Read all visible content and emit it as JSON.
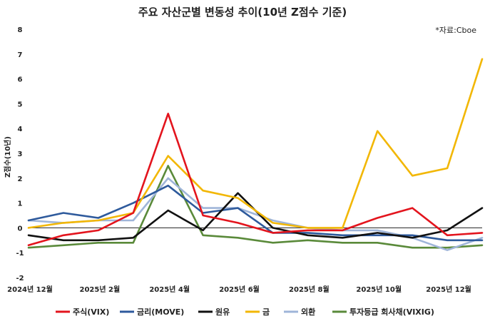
{
  "chart_data": {
    "type": "line",
    "title": "주요 자산군별 변동성 추이(10년 Z점수 기준)",
    "source": "*자료:Cboe",
    "ylabel": "Z점수(10년)",
    "xlabel": "",
    "ylim": [
      -2,
      8
    ],
    "yticks": [
      "-2",
      "-1",
      "0",
      "1",
      "2",
      "3",
      "4",
      "5",
      "6",
      "7",
      "8"
    ],
    "x": [
      "2024-12",
      "2025-01",
      "2025-02",
      "2025-03",
      "2025-04",
      "2025-05",
      "2025-06",
      "2025-07",
      "2025-08",
      "2025-09",
      "2025-10",
      "2025-11",
      "2025-12",
      "2026-01"
    ],
    "xticks": [
      "2024년 12월",
      "2025년 2월",
      "2025년 4월",
      "2025년 6월",
      "2025년 8월",
      "2025년 10월",
      "2025년 12월"
    ],
    "grid": false,
    "legend_position": "bottom",
    "series": [
      {
        "name": "주식(VIX)",
        "color": "#e3141d",
        "values": [
          -0.7,
          -0.3,
          -0.1,
          0.6,
          4.6,
          0.5,
          0.2,
          -0.2,
          -0.1,
          -0.1,
          0.4,
          0.8,
          -0.3,
          -0.2
        ]
      },
      {
        "name": "금리(MOVE)",
        "color": "#2e5a9c",
        "values": [
          0.3,
          0.6,
          0.4,
          1.0,
          1.7,
          0.6,
          0.8,
          -0.2,
          -0.2,
          -0.3,
          -0.3,
          -0.3,
          -0.5,
          -0.5
        ]
      },
      {
        "name": "원유",
        "color": "#111111",
        "values": [
          -0.3,
          -0.5,
          -0.5,
          -0.4,
          0.7,
          -0.1,
          1.4,
          0.0,
          -0.3,
          -0.4,
          -0.2,
          -0.4,
          -0.1,
          0.8
        ]
      },
      {
        "name": "금",
        "color": "#f2b705",
        "values": [
          0.0,
          0.2,
          0.3,
          0.6,
          2.9,
          1.5,
          1.2,
          0.2,
          0.0,
          0.0,
          3.9,
          2.1,
          2.4,
          6.8
        ]
      },
      {
        "name": "외환",
        "color": "#9fb5d9",
        "values": [
          0.3,
          0.2,
          0.3,
          0.3,
          2.0,
          0.8,
          0.8,
          0.3,
          0.0,
          -0.1,
          -0.1,
          -0.4,
          -0.9,
          -0.4
        ]
      },
      {
        "name": "투자등급 회사채(VIXIG)",
        "color": "#5a8a3a",
        "values": [
          -0.8,
          -0.7,
          -0.6,
          -0.6,
          2.5,
          -0.3,
          -0.4,
          -0.6,
          -0.5,
          -0.6,
          -0.6,
          -0.8,
          -0.8,
          -0.7
        ]
      }
    ]
  }
}
